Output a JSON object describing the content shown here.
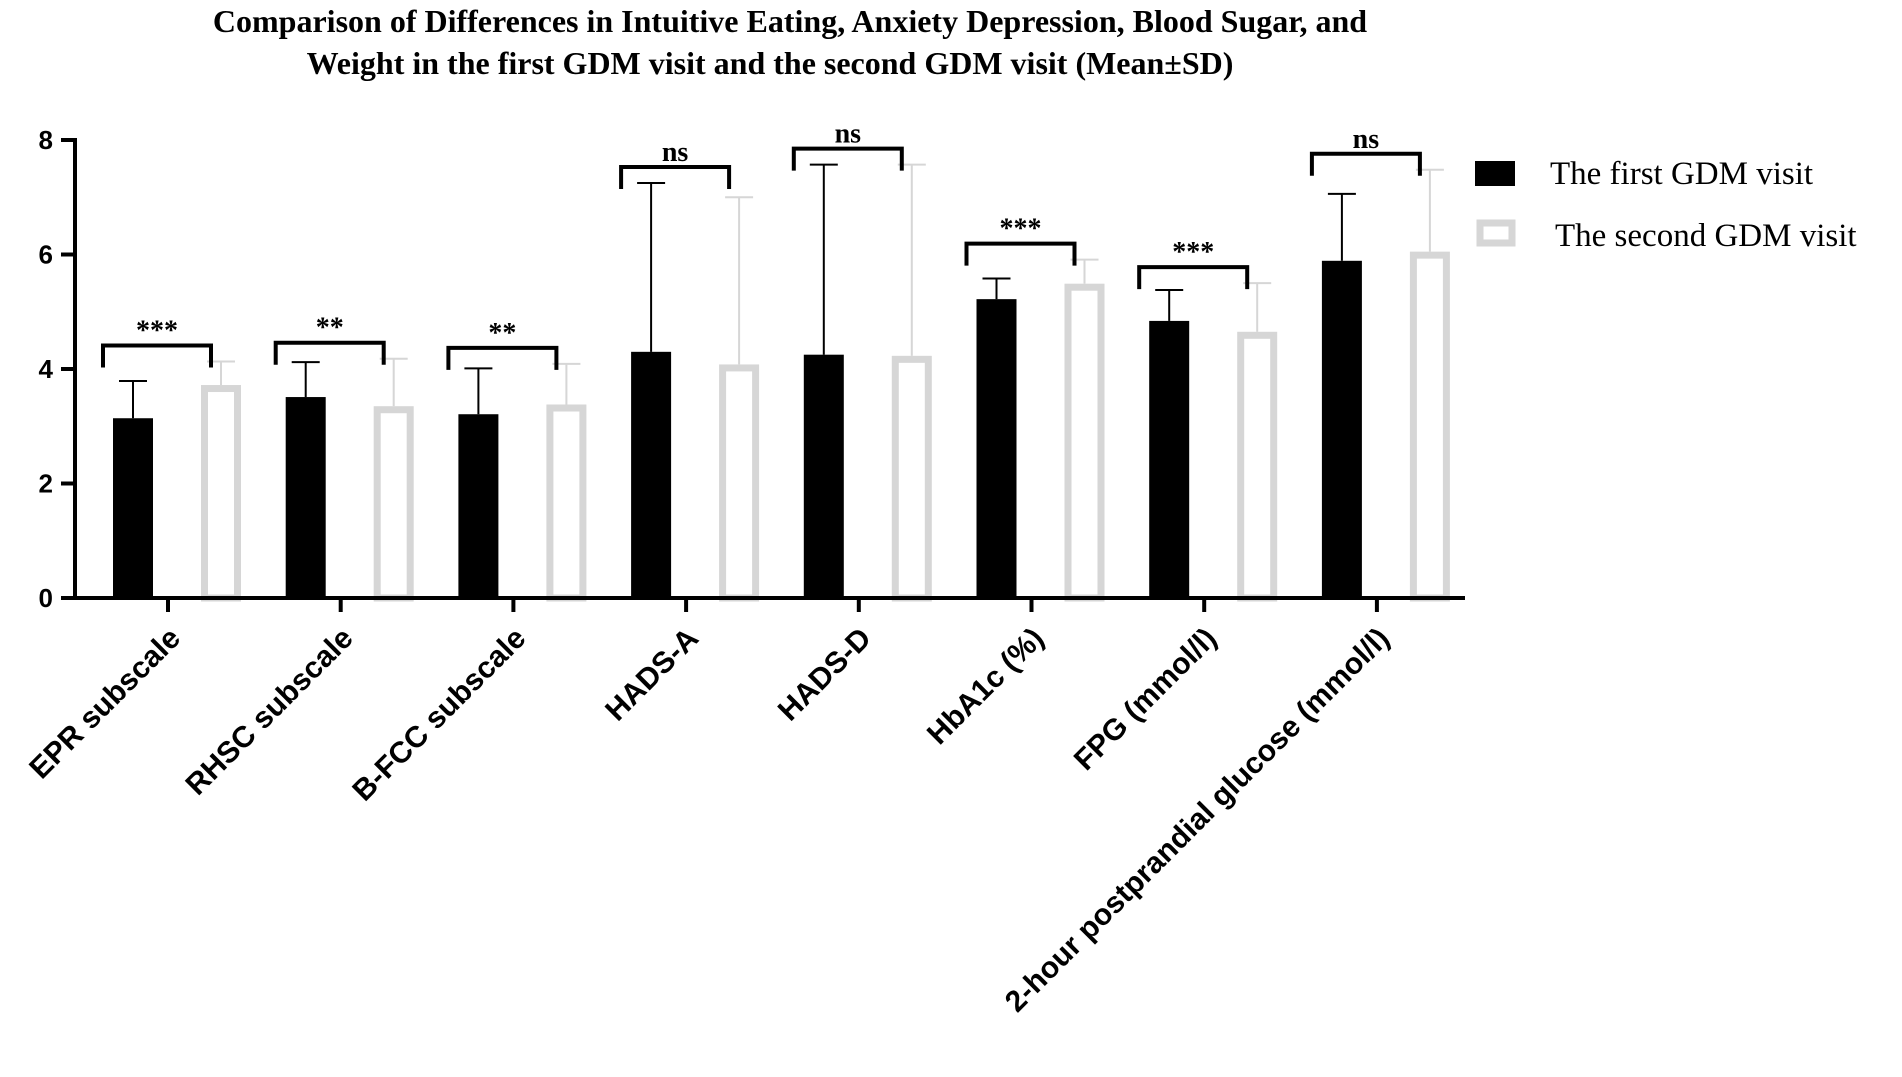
{
  "chart_data": {
    "type": "bar",
    "title_lines": [
      "Comparison of Differences in Intuitive Eating, Anxiety Depression, Blood Sugar, and",
      "Weight in the first GDM visit and the second GDM visit (Mean±SD)"
    ],
    "categories": [
      "EPR subscale",
      "RHSC subscale",
      "B-FCC subscale",
      "HADS-A",
      "HADS-D",
      "HbA1c (%)",
      "FPG (mmol/l)",
      "2-hour postprandial glucose (mmol/l)"
    ],
    "series": [
      {
        "name": "The first GDM visit",
        "color": "#000000",
        "values": [
          3.14,
          3.51,
          3.21,
          4.3,
          4.25,
          5.22,
          4.84,
          5.89
        ],
        "sd_upper": [
          3.79,
          4.12,
          4.01,
          7.25,
          7.57,
          5.58,
          5.38,
          7.06
        ]
      },
      {
        "name": "The second GDM visit",
        "color": "#d6d6d6",
        "values": [
          3.72,
          3.35,
          3.38,
          4.08,
          4.23,
          5.49,
          4.65,
          6.05
        ],
        "sd_upper": [
          4.13,
          4.18,
          4.09,
          7.0,
          7.57,
          5.91,
          5.5,
          7.48
        ]
      }
    ],
    "significance": [
      "***",
      "**",
      "**",
      "ns",
      "ns",
      "***",
      "***",
      "ns"
    ],
    "y_ticks": [
      "0",
      "2",
      "4",
      "6",
      "8"
    ],
    "ylim": [
      0,
      8
    ],
    "legend_position": "top-right"
  }
}
